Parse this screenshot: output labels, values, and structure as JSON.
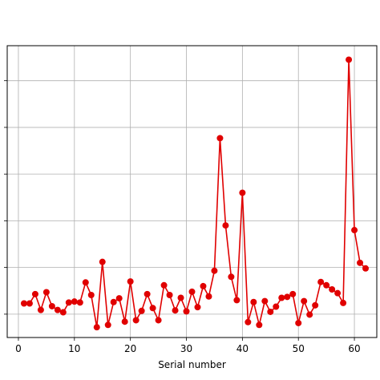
{
  "chart_data": {
    "type": "line",
    "title": "",
    "xlabel": "Serial number",
    "ylabel": "",
    "xlim": [
      -2,
      64
    ],
    "ylim": [
      0.1,
      0.725
    ],
    "grid": true,
    "x_ticks": [
      0,
      10,
      20,
      30,
      40,
      50,
      60
    ],
    "x_tick_labels": [
      "0",
      "10",
      "20",
      "30",
      "40",
      "50",
      "60"
    ],
    "y_ticks": [
      0.15,
      0.25,
      0.35,
      0.45,
      0.55,
      0.65
    ],
    "y_tick_labels": [
      "",
      "",
      "",
      "",
      "",
      ""
    ],
    "colors": {
      "series": "#e00000"
    },
    "series": [
      {
        "name": "",
        "x": [
          1,
          2,
          3,
          4,
          5,
          6,
          7,
          8,
          9,
          10,
          11,
          12,
          13,
          14,
          15,
          16,
          17,
          18,
          19,
          20,
          21,
          22,
          23,
          24,
          25,
          26,
          27,
          28,
          29,
          30,
          31,
          32,
          33,
          34,
          35,
          36,
          37,
          38,
          39,
          40,
          41,
          42,
          43,
          44,
          45,
          46,
          47,
          48,
          49,
          50,
          51,
          52,
          53,
          54,
          55,
          56,
          57,
          58,
          59,
          60,
          61,
          62
        ],
        "values": [
          0.173,
          0.173,
          0.193,
          0.159,
          0.197,
          0.167,
          0.159,
          0.154,
          0.175,
          0.177,
          0.175,
          0.218,
          0.191,
          0.122,
          0.262,
          0.127,
          0.176,
          0.184,
          0.134,
          0.22,
          0.137,
          0.157,
          0.193,
          0.163,
          0.137,
          0.212,
          0.191,
          0.158,
          0.185,
          0.156,
          0.198,
          0.165,
          0.21,
          0.188,
          0.243,
          0.527,
          0.34,
          0.23,
          0.18,
          0.41,
          0.133,
          0.176,
          0.127,
          0.178,
          0.155,
          0.166,
          0.185,
          0.187,
          0.193,
          0.131,
          0.178,
          0.149,
          0.169,
          0.219,
          0.212,
          0.203,
          0.195,
          0.174,
          0.695,
          0.33,
          0.26,
          0.248
        ]
      }
    ]
  }
}
